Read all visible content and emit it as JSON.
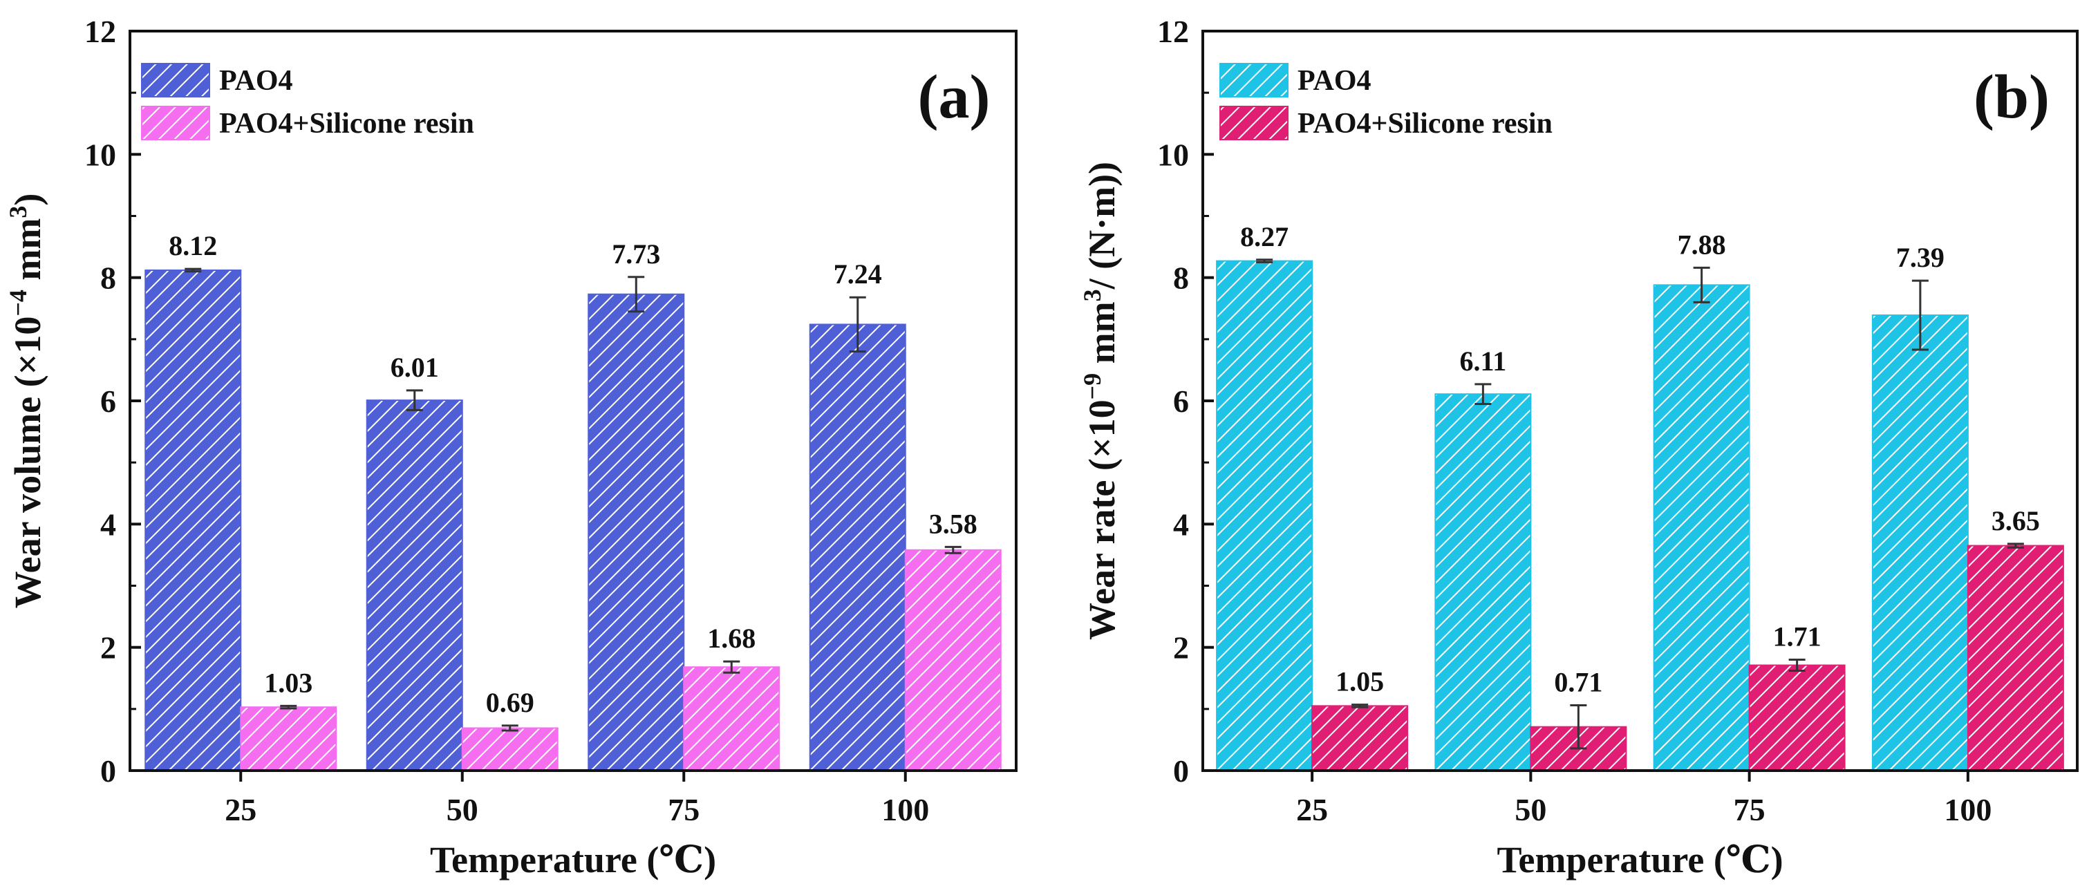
{
  "chart_data": [
    {
      "type": "bar",
      "panel_label": "(a)",
      "title": "",
      "xlabel": "Temperature (℃)",
      "ylabel_main": "Wear volume  (×10",
      "ylabel_exp": "−4",
      "ylabel_mid": " mm",
      "ylabel_exp2": "3",
      "ylabel_end": ")",
      "categories": [
        "25",
        "50",
        "75",
        "100"
      ],
      "ylim": [
        0,
        12
      ],
      "yticks": [
        "0",
        "2",
        "4",
        "6",
        "8",
        "10",
        "12"
      ],
      "legend_position": "top-left",
      "series": [
        {
          "name": "PAO4",
          "color": "#4f5fd6",
          "values": [
            8.12,
            6.01,
            7.73,
            7.24
          ],
          "errors": [
            0.02,
            0.16,
            0.28,
            0.44
          ],
          "labels": [
            "8.12",
            "6.01",
            "7.73",
            "7.24"
          ]
        },
        {
          "name": "PAO4+Silicone resin",
          "color": "#f56ef0",
          "values": [
            1.03,
            0.69,
            1.68,
            3.58
          ],
          "errors": [
            0.02,
            0.04,
            0.09,
            0.05
          ],
          "labels": [
            "1.03",
            "0.69",
            "1.68",
            "3.58"
          ]
        }
      ]
    },
    {
      "type": "bar",
      "panel_label": "(b)",
      "title": "",
      "xlabel": "Temperature (℃)",
      "ylabel_main": "Wear rate  (×10",
      "ylabel_exp": "−9",
      "ylabel_mid": " mm",
      "ylabel_exp2": "3",
      "ylabel_end": "/ (N·m))",
      "categories": [
        "25",
        "50",
        "75",
        "100"
      ],
      "ylim": [
        0,
        12
      ],
      "yticks": [
        "0",
        "2",
        "4",
        "6",
        "8",
        "10",
        "12"
      ],
      "legend_position": "top-left",
      "series": [
        {
          "name": "PAO4",
          "color": "#1ec3e6",
          "values": [
            8.27,
            6.11,
            7.88,
            7.39
          ],
          "errors": [
            0.02,
            0.16,
            0.28,
            0.56
          ],
          "labels": [
            "8.27",
            "6.11",
            "7.88",
            "7.39"
          ]
        },
        {
          "name": "PAO4+Silicone resin",
          "color": "#e01e74",
          "values": [
            1.05,
            0.71,
            1.71,
            3.65
          ],
          "errors": [
            0.02,
            0.35,
            0.09,
            0.03
          ],
          "labels": [
            "1.05",
            "0.71",
            "1.71",
            "3.65"
          ]
        }
      ]
    }
  ]
}
